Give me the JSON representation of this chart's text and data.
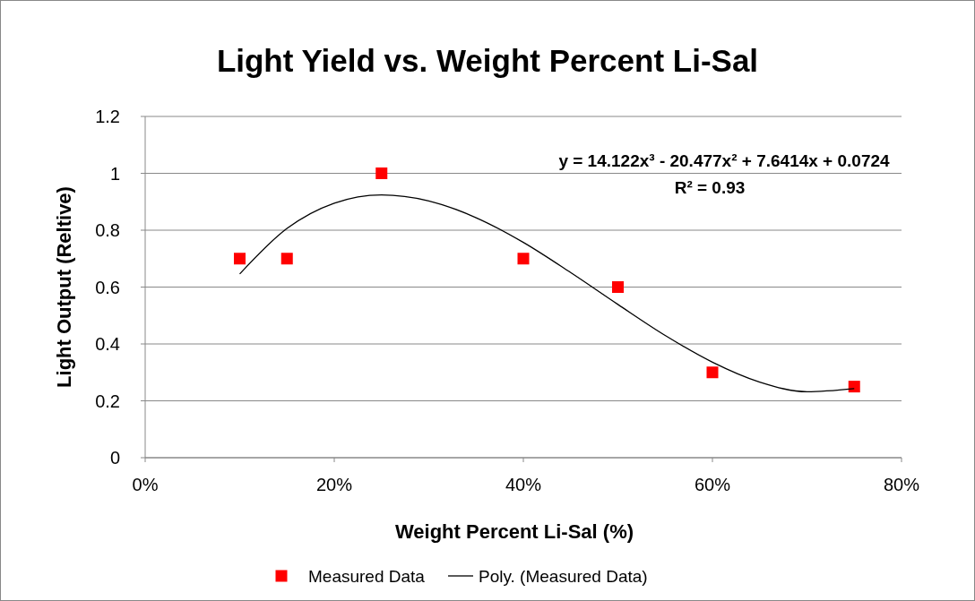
{
  "chart_data": {
    "type": "scatter",
    "title": "Light Yield vs. Weight Percent Li-Sal",
    "xlabel": "Weight Percent Li-Sal (%)",
    "ylabel": "Light Output (Reltive)",
    "series": [
      {
        "name": "Measured Data",
        "color": "#ff0000",
        "marker": "square",
        "x": [
          10,
          15,
          25,
          40,
          50,
          60,
          75
        ],
        "values": [
          0.7,
          0.7,
          1.0,
          0.7,
          0.6,
          0.3,
          0.25
        ]
      },
      {
        "name": "Poly. (Measured Data)",
        "type": "line",
        "color": "#000000",
        "marker": "none",
        "x": [
          10,
          15,
          20,
          25,
          30,
          35,
          40,
          45,
          50,
          55,
          60,
          65,
          70,
          75
        ],
        "values": [
          0.646,
          0.806,
          0.895,
          0.924,
          0.903,
          0.844,
          0.757,
          0.651,
          0.539,
          0.43,
          0.336,
          0.266,
          0.232,
          0.243
        ]
      }
    ],
    "xlim": [
      0,
      80
    ],
    "xticks": [
      {
        "value": 0,
        "label": "0%"
      },
      {
        "value": 20,
        "label": "20%"
      },
      {
        "value": 40,
        "label": "40%"
      },
      {
        "value": 60,
        "label": "60%"
      },
      {
        "value": 80,
        "label": "80%"
      }
    ],
    "ylim": [
      0,
      1.2
    ],
    "yticks": [
      {
        "value": 0,
        "label": "0"
      },
      {
        "value": 0.2,
        "label": "0.2"
      },
      {
        "value": 0.4,
        "label": "0.4"
      },
      {
        "value": 0.6,
        "label": "0.6"
      },
      {
        "value": 0.8,
        "label": "0.8"
      },
      {
        "value": 1,
        "label": "1"
      },
      {
        "value": 1.2,
        "label": "1.2"
      }
    ],
    "grid": "y",
    "legend": "bottom",
    "annotations": [
      "y = 14.122x³ - 20.477x² + 7.6414x + 0.0724",
      "R² = 0.93"
    ]
  }
}
